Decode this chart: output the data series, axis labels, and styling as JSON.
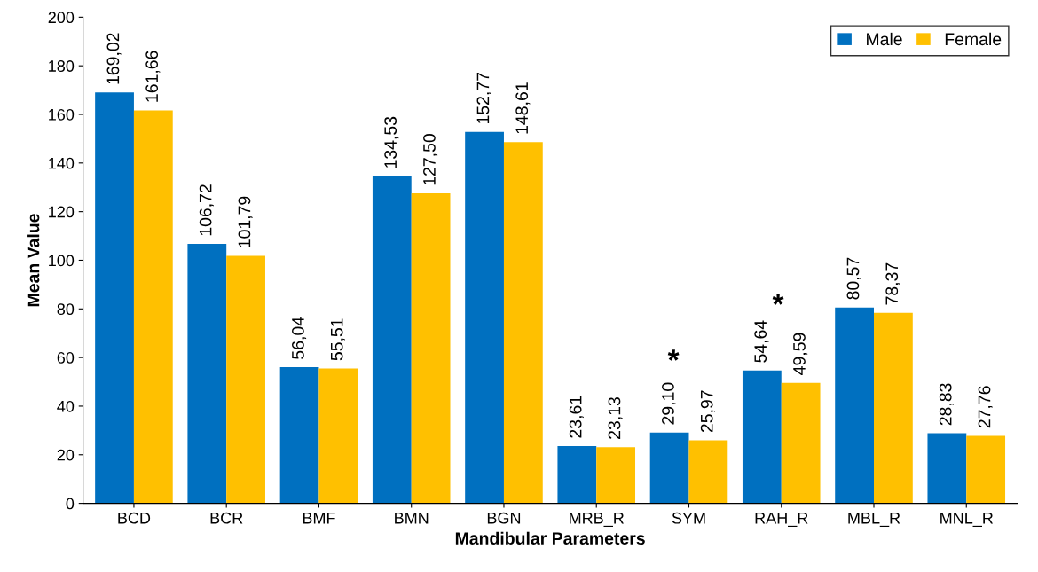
{
  "chart_data": {
    "type": "bar",
    "xlabel": "Mandibular Parameters",
    "ylabel": "Mean Value",
    "categories": [
      "BCD",
      "BCR",
      "BMF",
      "BMN",
      "BGN",
      "MRB_R",
      "SYM",
      "RAH_R",
      "MBL_R",
      "MNL_R"
    ],
    "series": [
      {
        "name": "Male",
        "color": "#0070c0",
        "values": [
          169.02,
          106.72,
          56.04,
          134.53,
          152.77,
          23.61,
          29.1,
          54.64,
          80.57,
          28.83
        ],
        "value_labels": [
          "169,02",
          "106,72",
          "56,04",
          "134,53",
          "152,77",
          "23,61",
          "29,10",
          "54,64",
          "80,57",
          "28,83"
        ]
      },
      {
        "name": "Female",
        "color": "#ffc000",
        "values": [
          161.66,
          101.79,
          55.51,
          127.5,
          148.61,
          23.13,
          25.97,
          49.59,
          78.37,
          27.76
        ],
        "value_labels": [
          "161,66",
          "101,79",
          "55,51",
          "127,50",
          "148,61",
          "23,13",
          "25,97",
          "49,59",
          "78,37",
          "27,76"
        ]
      }
    ],
    "annotations": [
      "*",
      "*"
    ],
    "ylim": [
      0,
      200
    ],
    "yticks": [
      0,
      20,
      40,
      60,
      80,
      100,
      120,
      140,
      160,
      180,
      200
    ],
    "grid": false,
    "legend": "top right"
  }
}
